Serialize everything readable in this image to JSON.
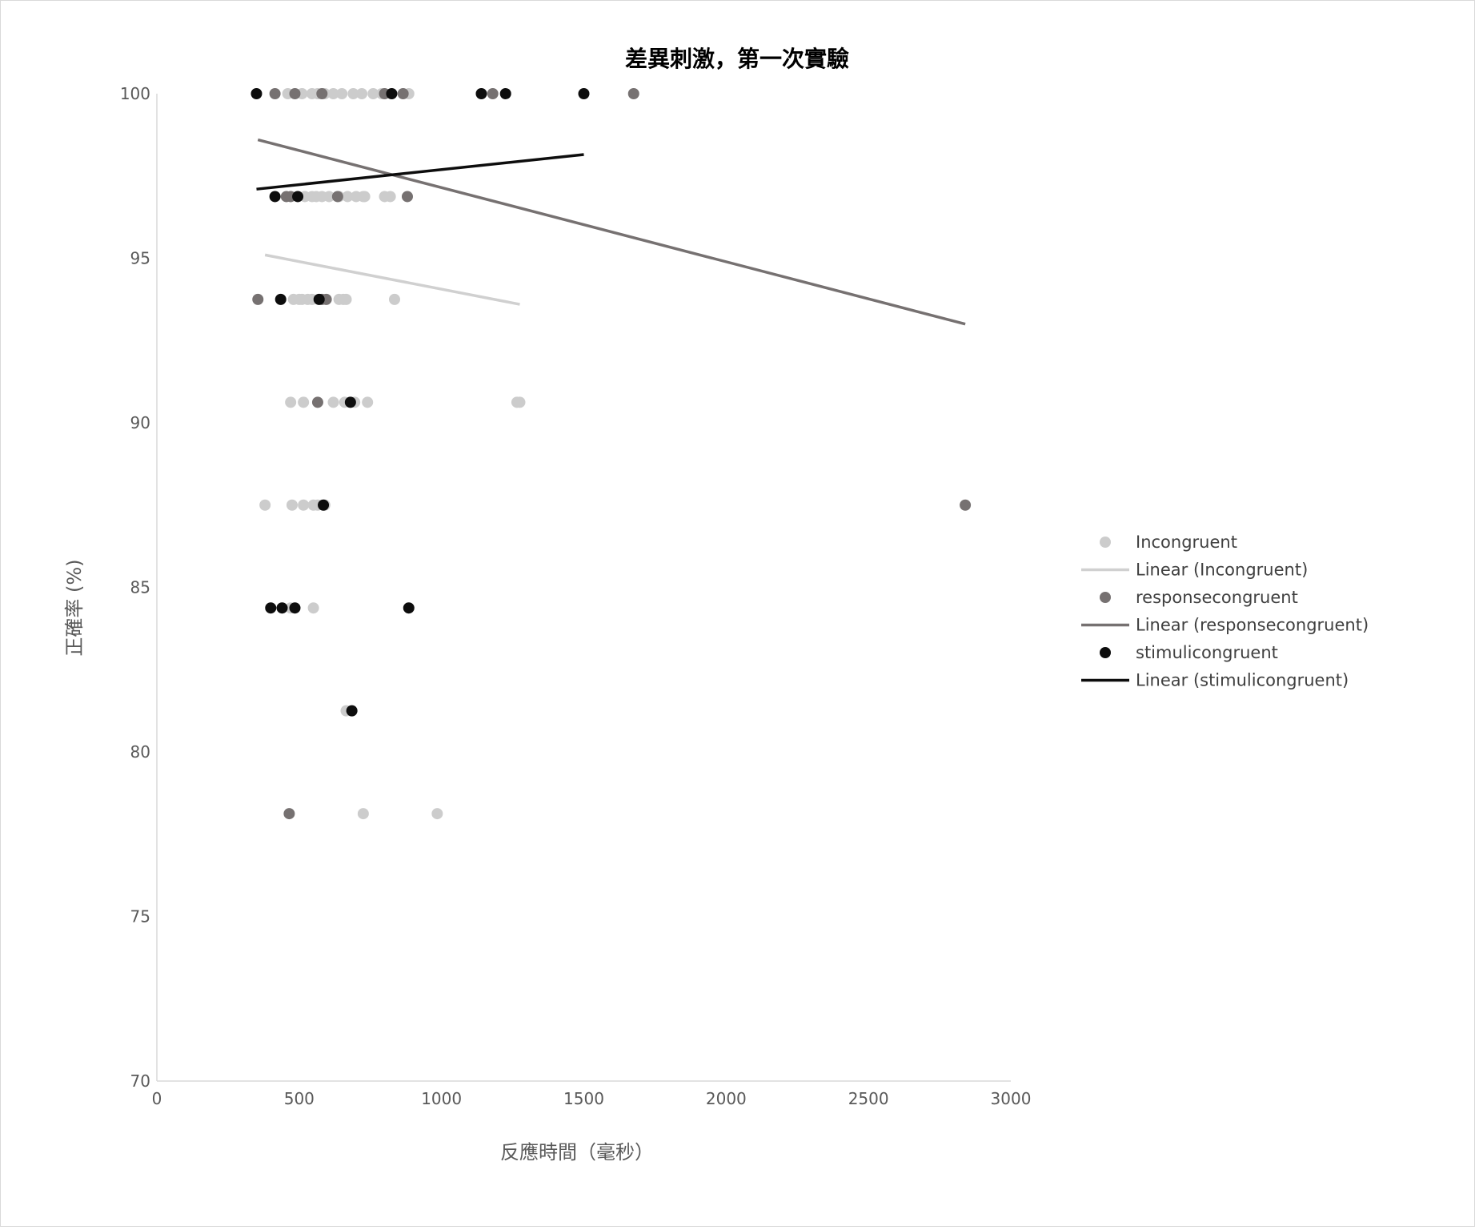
{
  "chart_data": {
    "type": "scatter",
    "title": "差異刺激，第一次實驗",
    "xlabel": "反應時間（毫秒）",
    "ylabel": "正確率 (%)",
    "xlim": [
      0,
      3000
    ],
    "ylim": [
      70,
      100
    ],
    "x_ticks": [
      "0",
      "500",
      "1000",
      "1500",
      "2000",
      "2500",
      "3000"
    ],
    "y_ticks": [
      "70",
      "75",
      "80",
      "85",
      "90",
      "95",
      "100"
    ],
    "grid": false,
    "legend_position": "right",
    "series": [
      {
        "name": "Incongruent",
        "color": "#cccccc",
        "points": [
          [
            460,
            100
          ],
          [
            510,
            100
          ],
          [
            545,
            100
          ],
          [
            565,
            100
          ],
          [
            590,
            100
          ],
          [
            620,
            100
          ],
          [
            650,
            100
          ],
          [
            690,
            100
          ],
          [
            720,
            100
          ],
          [
            760,
            100
          ],
          [
            790,
            100
          ],
          [
            885,
            100
          ],
          [
            520,
            96.875
          ],
          [
            545,
            96.875
          ],
          [
            560,
            96.875
          ],
          [
            580,
            96.875
          ],
          [
            605,
            96.875
          ],
          [
            640,
            96.875
          ],
          [
            670,
            96.875
          ],
          [
            700,
            96.875
          ],
          [
            725,
            96.875
          ],
          [
            730,
            96.875
          ],
          [
            800,
            96.875
          ],
          [
            820,
            96.875
          ],
          [
            480,
            93.75
          ],
          [
            500,
            93.75
          ],
          [
            510,
            93.75
          ],
          [
            530,
            93.75
          ],
          [
            545,
            93.75
          ],
          [
            640,
            93.75
          ],
          [
            655,
            93.75
          ],
          [
            665,
            93.75
          ],
          [
            835,
            93.75
          ],
          [
            470,
            90.625
          ],
          [
            515,
            90.625
          ],
          [
            620,
            90.625
          ],
          [
            660,
            90.625
          ],
          [
            695,
            90.625
          ],
          [
            740,
            90.625
          ],
          [
            1265,
            90.625
          ],
          [
            1275,
            90.625
          ],
          [
            380,
            87.5
          ],
          [
            475,
            87.5
          ],
          [
            515,
            87.5
          ],
          [
            550,
            87.5
          ],
          [
            565,
            87.5
          ],
          [
            590,
            87.5
          ],
          [
            470,
            84.375
          ],
          [
            550,
            84.375
          ],
          [
            665,
            81.25
          ],
          [
            725,
            78.125
          ],
          [
            985,
            78.125
          ]
        ],
        "trend": [
          [
            380,
            95.1
          ],
          [
            1275,
            93.6
          ]
        ]
      },
      {
        "name": "responsecongruent",
        "color": "#767171",
        "points": [
          [
            415,
            100
          ],
          [
            485,
            100
          ],
          [
            580,
            100
          ],
          [
            800,
            100
          ],
          [
            865,
            100
          ],
          [
            1180,
            100
          ],
          [
            1675,
            100
          ],
          [
            455,
            96.875
          ],
          [
            470,
            96.875
          ],
          [
            635,
            96.875
          ],
          [
            880,
            96.875
          ],
          [
            355,
            93.75
          ],
          [
            580,
            93.75
          ],
          [
            595,
            93.75
          ],
          [
            565,
            90.625
          ],
          [
            2840,
            87.5
          ],
          [
            465,
            78.125
          ]
        ],
        "trend": [
          [
            355,
            98.6
          ],
          [
            2840,
            93.0
          ]
        ]
      },
      {
        "name": "stimulicongruent",
        "color": "#0d0d0d",
        "points": [
          [
            350,
            100
          ],
          [
            825,
            100
          ],
          [
            1140,
            100
          ],
          [
            1225,
            100
          ],
          [
            1500,
            100
          ],
          [
            415,
            96.875
          ],
          [
            495,
            96.875
          ],
          [
            435,
            93.75
          ],
          [
            570,
            93.75
          ],
          [
            680,
            90.625
          ],
          [
            585,
            87.5
          ],
          [
            400,
            84.375
          ],
          [
            440,
            84.375
          ],
          [
            485,
            84.375
          ],
          [
            885,
            84.375
          ],
          [
            685,
            81.25
          ]
        ],
        "trend": [
          [
            350,
            97.1
          ],
          [
            1500,
            98.15
          ]
        ]
      }
    ],
    "legend": [
      {
        "label": "Incongruent",
        "kind": "marker",
        "color": "#cccccc"
      },
      {
        "label": "Linear (Incongruent)",
        "kind": "line",
        "color": "#d0d0d0"
      },
      {
        "label": "responsecongruent",
        "kind": "marker",
        "color": "#767171"
      },
      {
        "label": "Linear (responsecongruent)",
        "kind": "line",
        "color": "#767171"
      },
      {
        "label": "stimulicongruent",
        "kind": "marker",
        "color": "#0d0d0d"
      },
      {
        "label": "Linear (stimulicongruent)",
        "kind": "line",
        "color": "#0d0d0d"
      }
    ]
  }
}
